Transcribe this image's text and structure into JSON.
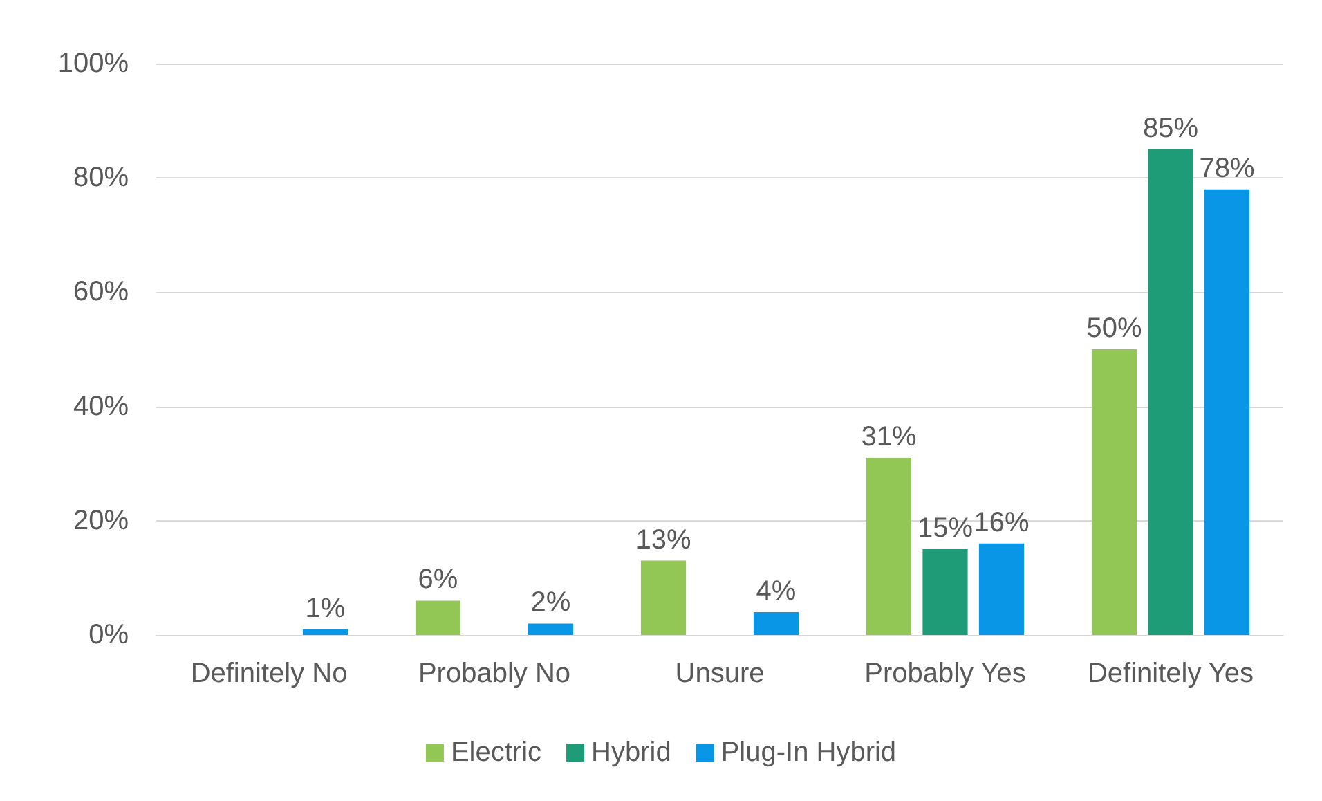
{
  "chart_data": {
    "type": "bar",
    "categories": [
      "Definitely No",
      "Probably No",
      "Unsure",
      "Probably Yes",
      "Definitely Yes"
    ],
    "series": [
      {
        "name": "Electric",
        "color": "#92c755",
        "values": [
          null,
          6,
          13,
          31,
          50
        ],
        "value_labels": [
          null,
          "6%",
          "13%",
          "31%",
          "50%"
        ]
      },
      {
        "name": "Hybrid",
        "color": "#1e9c77",
        "values": [
          null,
          null,
          null,
          15,
          85
        ],
        "value_labels": [
          null,
          null,
          null,
          "15%",
          "85%"
        ]
      },
      {
        "name": "Plug-In Hybrid",
        "color": "#0a96e6",
        "values": [
          1,
          2,
          4,
          16,
          78
        ],
        "value_labels": [
          "1%",
          "2%",
          "4%",
          "16%",
          "78%"
        ]
      }
    ],
    "ylim": [
      0,
      100
    ],
    "yticks": [
      {
        "value": 0,
        "label": "0%"
      },
      {
        "value": 20,
        "label": "20%"
      },
      {
        "value": 40,
        "label": "40%"
      },
      {
        "value": 60,
        "label": "60%"
      },
      {
        "value": 80,
        "label": "80%"
      },
      {
        "value": 100,
        "label": "100%"
      }
    ],
    "grid": "y",
    "legend": "bottom"
  }
}
